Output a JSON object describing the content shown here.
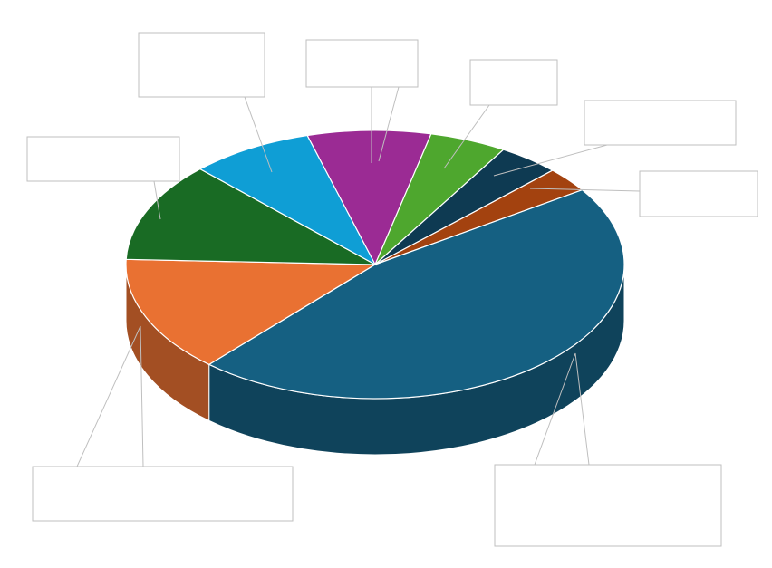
{
  "chart_data": {
    "type": "pie",
    "categories": [
      null,
      null,
      null,
      null,
      null,
      null,
      null,
      null
    ],
    "values": [
      8,
      5,
      4,
      3,
      46,
      14,
      12,
      8
    ],
    "colors": [
      "#9b2b94",
      "#4ea72e",
      "#0e3a52",
      "#a3420f",
      "#156082",
      "#e97132",
      "#196b24",
      "#0f9ed5"
    ]
  }
}
